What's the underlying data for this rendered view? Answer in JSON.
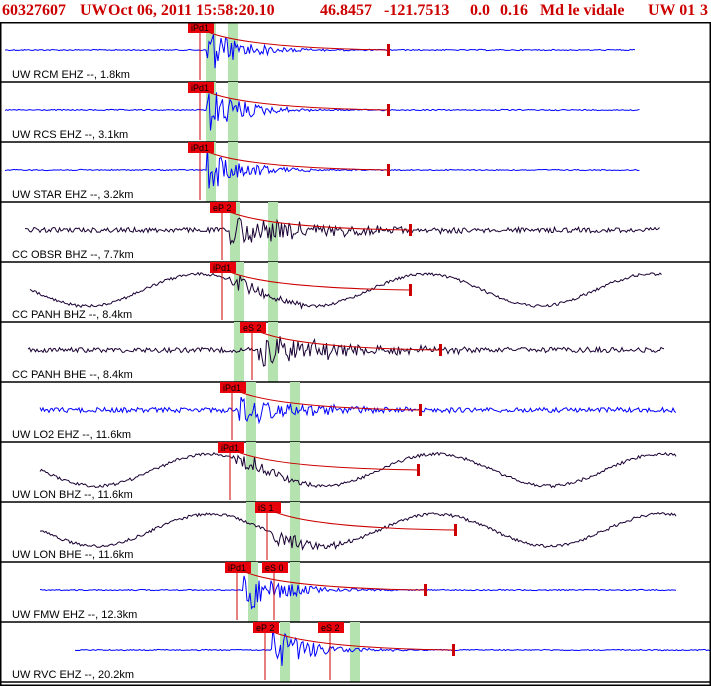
{
  "header": {
    "event_id": "60327607",
    "network": "UW",
    "datetime": "Oct 06, 2011 15:58:20.10",
    "lat": "46.8457",
    "lon": "-121.7513",
    "depth": "0.0",
    "magnitude": "0.16",
    "mag_type": "Md",
    "analyst": "le vidale",
    "source": "UW 01",
    "extra": "3"
  },
  "colors": {
    "header_text": "#cc0000",
    "pick_box": "#e8000a",
    "pick_text": "#000000",
    "trace_blue": "#0000ff",
    "trace_dark": "#1a0033",
    "highlight": "#b5e3b0",
    "divider": "#000000",
    "coda": "#cc0000"
  },
  "traces": [
    {
      "label": "UW RCM EHZ --, 1.8km",
      "color": "blue",
      "pick": "iPd1",
      "pick2": "",
      "amp": "small"
    },
    {
      "label": "UW RCS EHZ --, 3.1km",
      "color": "blue",
      "pick": "iPd1",
      "pick2": "",
      "amp": "small"
    },
    {
      "label": "UW STAR EHZ --, 3.2km",
      "color": "blue",
      "pick": "iPd1",
      "pick2": "",
      "amp": "small"
    },
    {
      "label": "CC OBSR BHZ --, 7.7km",
      "color": "dark",
      "pick": "eP 2",
      "pick2": "",
      "amp": "medium"
    },
    {
      "label": "CC PANH BHZ --, 8.4km",
      "color": "dark",
      "pick": "iPd1",
      "pick2": "",
      "amp": "wave"
    },
    {
      "label": "CC PANH BHE --, 8.4km",
      "color": "dark",
      "pick": "eS 2",
      "pick2": "",
      "amp": "medium"
    },
    {
      "label": "UW LO2 EHZ --, 11.6km",
      "color": "blue",
      "pick": "iPd1",
      "pick2": "",
      "amp": "noisy"
    },
    {
      "label": "UW LON BHZ --, 11.6km",
      "color": "dark",
      "pick": "iPd1",
      "pick2": "",
      "amp": "wave"
    },
    {
      "label": "UW LON BHE --, 11.6km",
      "color": "dark",
      "pick": "iS 1",
      "pick2": "",
      "amp": "wave"
    },
    {
      "label": "UW FMW EHZ --, 12.3km",
      "color": "blue",
      "pick": "iPd1",
      "pick2": "eS 0",
      "amp": "small"
    },
    {
      "label": "UW RVC EHZ --, 20.2km",
      "color": "blue",
      "pick": "eP 2",
      "pick2": "eS 2",
      "amp": "small"
    }
  ]
}
